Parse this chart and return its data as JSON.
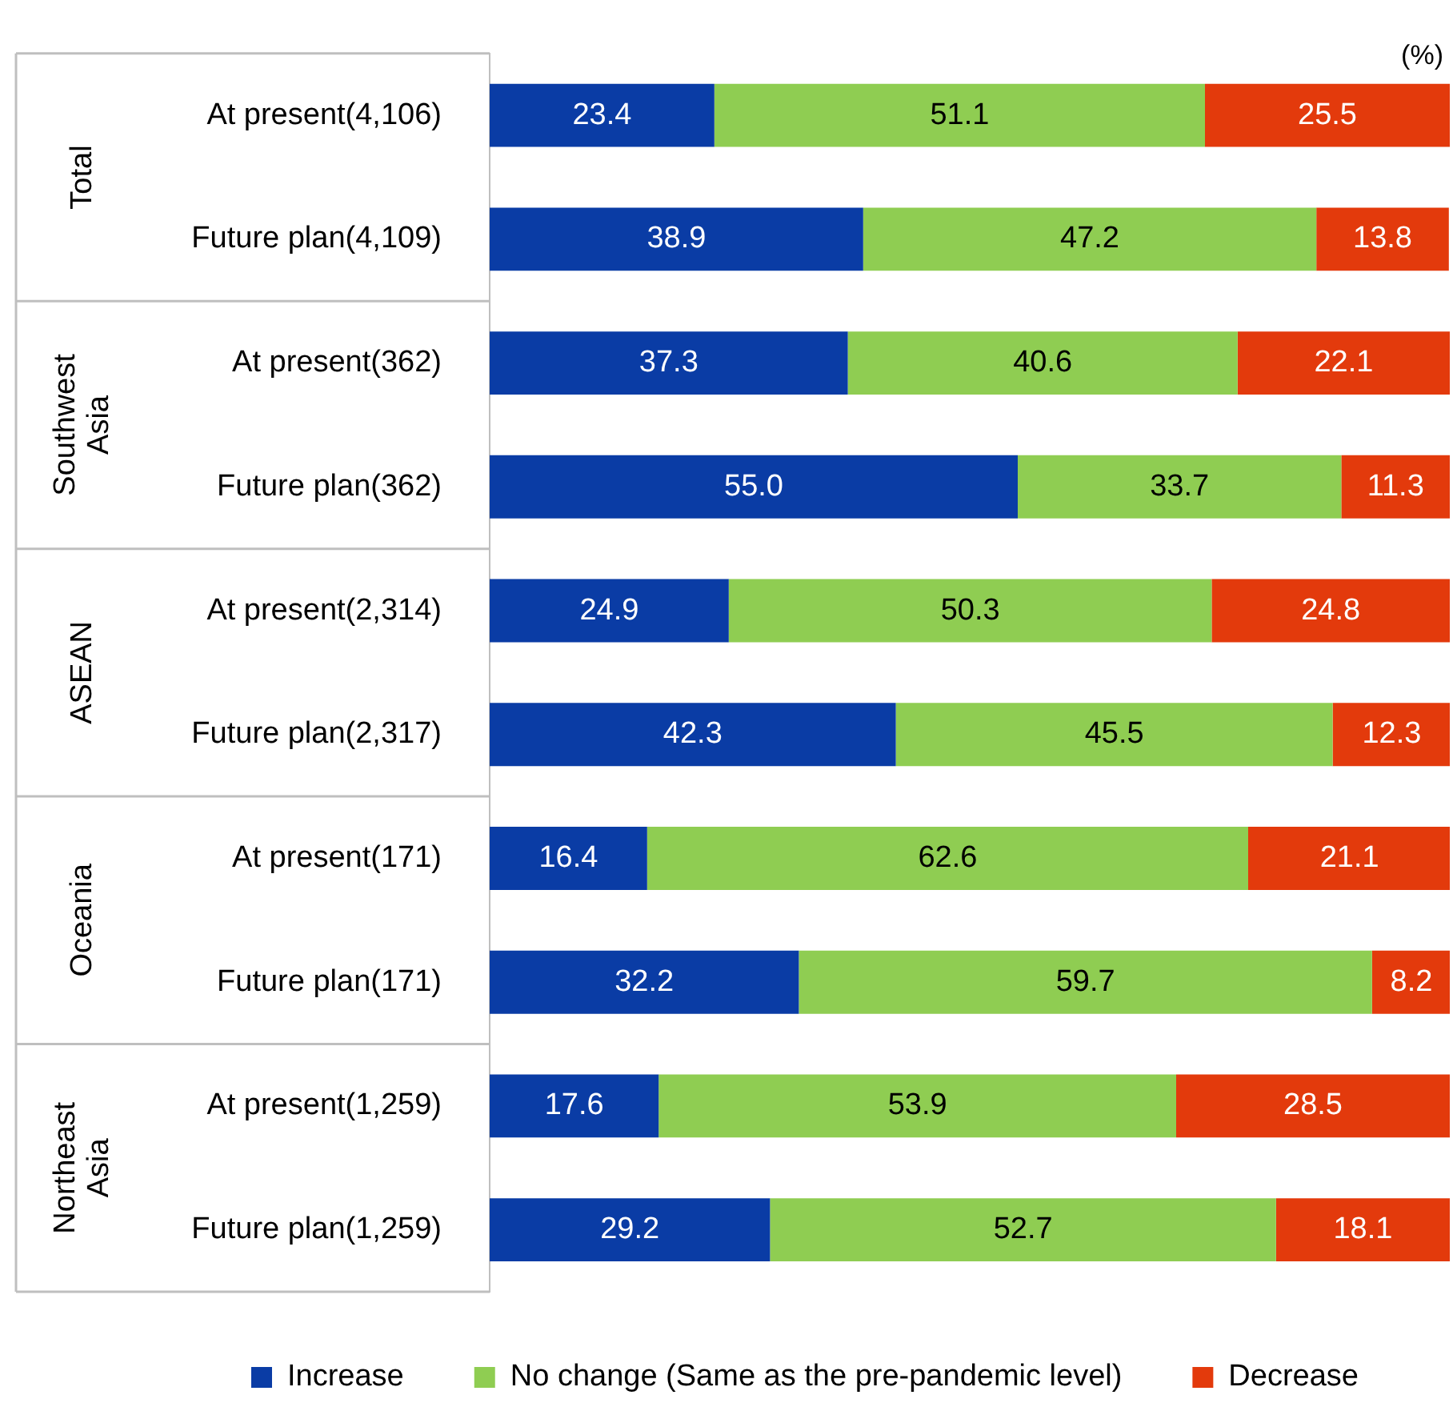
{
  "chart_data": {
    "type": "bar",
    "orientation": "horizontal",
    "stacked": true,
    "legend": "bottom",
    "tick_labels": "y",
    "xlim": [
      0,
      100
    ],
    "categories": [
      "At present(4,106)",
      "Future plan(4,109)",
      "At present(362)",
      "Future plan(362)",
      "At present(2,314)",
      "Future plan(2,317)",
      "At present(171)",
      "Future plan(171)",
      "At present(1,259)",
      "Future plan(1,259)"
    ],
    "series": [
      {
        "name": "Increase",
        "color": "#0a3ca5",
        "values": [
          23.4,
          38.9,
          37.3,
          55.0,
          24.9,
          42.3,
          16.4,
          32.2,
          17.6,
          29.2
        ],
        "value_labels": [
          "23.4",
          "38.9",
          "37.3",
          "55.0",
          "24.9",
          "42.3",
          "16.4",
          "32.2",
          "17.6",
          "29.2"
        ]
      },
      {
        "name": "No change (Same as the pre-pandemic level)",
        "color": "#8fcd52",
        "values": [
          51.1,
          47.2,
          40.6,
          33.7,
          50.3,
          45.5,
          62.6,
          59.7,
          53.9,
          52.7
        ],
        "value_labels": [
          "51.1",
          "47.2",
          "40.6",
          "33.7",
          "50.3",
          "45.5",
          "62.6",
          "59.7",
          "53.9",
          "52.7"
        ]
      },
      {
        "name": "Decrease",
        "color": "#e33a0c",
        "values": [
          25.5,
          13.8,
          22.1,
          11.3,
          24.8,
          12.3,
          21.1,
          8.2,
          28.5,
          18.1
        ],
        "value_labels": [
          "25.5",
          "13.8",
          "22.1",
          "11.3",
          "24.8",
          "12.3",
          "21.1",
          "8.2",
          "28.5",
          "18.1"
        ]
      }
    ],
    "annotations": [
      "(%)",
      "Total",
      "Southwest Asia",
      "ASEAN",
      "Oceania",
      "Northeast Asia"
    ]
  }
}
